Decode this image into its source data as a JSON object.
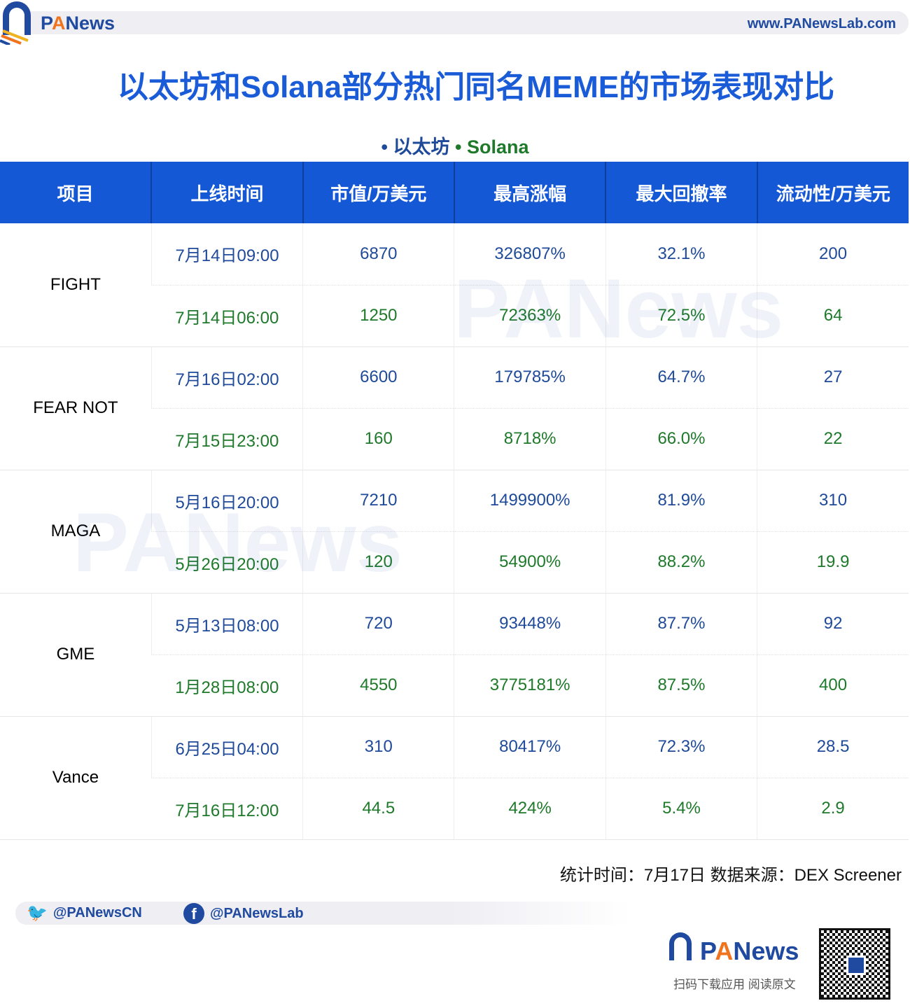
{
  "header": {
    "brand_p": "P",
    "brand_a": "A",
    "brand_rest": "News",
    "site": "www.PANewsLab.com"
  },
  "title": "以太坊和Solana部分热门同名MEME的市场表现对比",
  "legend": {
    "eth": "• 以太坊",
    "sol": "• Solana"
  },
  "colors": {
    "header_bg": "#1558d6",
    "title": "#1a5bd8",
    "eth": "#1f4a9a",
    "solana": "#1e7a2a",
    "brand": "#1f4aa0",
    "accent": "#f0731e"
  },
  "chart_data": {
    "type": "table",
    "columns": [
      "项目",
      "上线时间",
      "市值/万美元",
      "最高涨幅",
      "最大回撤率",
      "流动性/万美元"
    ],
    "rows": [
      {
        "project": "FIGHT",
        "eth": [
          "7月14日09:00",
          "6870",
          "326807%",
          "32.1%",
          "200"
        ],
        "sol": [
          "7月14日06:00",
          "1250",
          "72363%",
          "72.5%",
          "64"
        ]
      },
      {
        "project": "FEAR NOT",
        "eth": [
          "7月16日02:00",
          "6600",
          "179785%",
          "64.7%",
          "27"
        ],
        "sol": [
          "7月15日23:00",
          "160",
          "8718%",
          "66.0%",
          "22"
        ]
      },
      {
        "project": "MAGA",
        "eth": [
          "5月16日20:00",
          "7210",
          "1499900%",
          "81.9%",
          "310"
        ],
        "sol": [
          "5月26日20:00",
          "120",
          "54900%",
          "88.2%",
          "19.9"
        ]
      },
      {
        "project": "GME",
        "eth": [
          "5月13日08:00",
          "720",
          "93448%",
          "87.7%",
          "92"
        ],
        "sol": [
          "1月28日08:00",
          "4550",
          "3775181%",
          "87.5%",
          "400"
        ]
      },
      {
        "project": "Vance",
        "eth": [
          "6月25日04:00",
          "310",
          "80417%",
          "72.3%",
          "28.5"
        ],
        "sol": [
          "7月16日12:00",
          "44.5",
          "424%",
          "5.4%",
          "2.9"
        ]
      }
    ]
  },
  "footer": {
    "note": "统计时间：7月17日 数据来源：DEX Screener",
    "twitter": "@PANewsCN",
    "facebook": "@PANewsLab",
    "scan": "扫码下载应用  阅读原文"
  },
  "watermark": "PANews"
}
